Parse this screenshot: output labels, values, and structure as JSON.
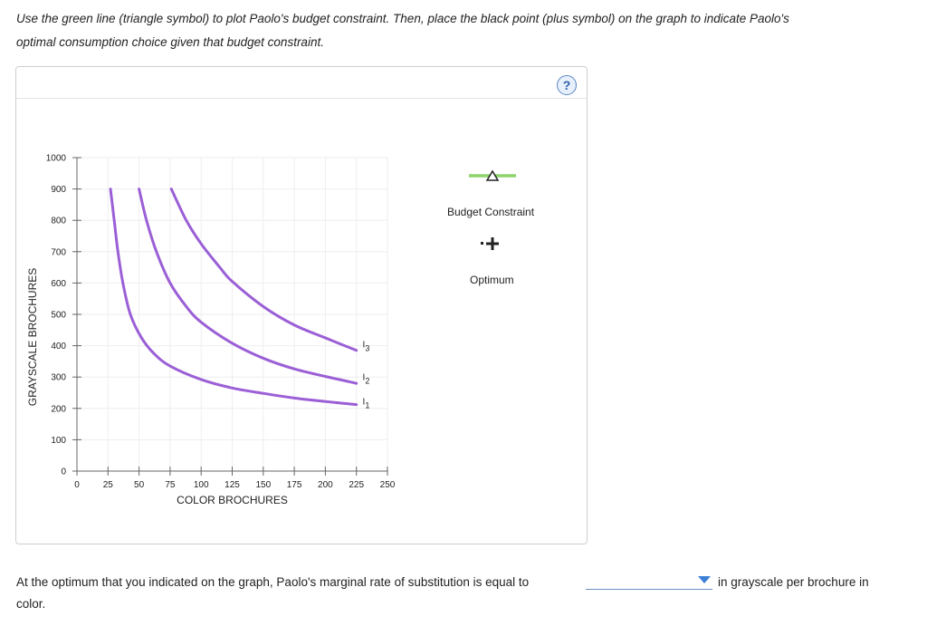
{
  "instructions": {
    "line1": "Use the green line (triangle symbol) to plot Paolo's budget constraint. Then, place the black point (plus symbol) on the graph to indicate Paolo's",
    "line2": "optimal consumption choice given that budget constraint."
  },
  "help_button": {
    "label": "?",
    "icon": "question-circle-icon",
    "color": "#5b86c5"
  },
  "chart_data": {
    "type": "line",
    "xlabel": "COLOR BROCHURES",
    "ylabel": "GRAYSCALE BROCHURES",
    "xlim": [
      0,
      250
    ],
    "ylim": [
      0,
      1000
    ],
    "x_ticks": [
      0,
      25,
      50,
      75,
      100,
      125,
      150,
      175,
      200,
      225,
      250
    ],
    "y_ticks": [
      0,
      100,
      200,
      300,
      400,
      500,
      600,
      700,
      800,
      900,
      1000
    ],
    "grid": true,
    "series": [
      {
        "name": "I1",
        "color": "#9b5fd6",
        "points": [
          [
            27,
            900
          ],
          [
            30,
            800
          ],
          [
            33,
            700
          ],
          [
            37,
            600
          ],
          [
            43,
            500
          ],
          [
            52,
            425
          ],
          [
            62,
            375
          ],
          [
            75,
            335
          ],
          [
            100,
            292
          ],
          [
            125,
            265
          ],
          [
            150,
            248
          ],
          [
            175,
            233
          ],
          [
            200,
            222
          ],
          [
            225,
            212
          ]
        ]
      },
      {
        "name": "I2",
        "color": "#9b5fd6",
        "points": [
          [
            50,
            900
          ],
          [
            56,
            800
          ],
          [
            64,
            700
          ],
          [
            75,
            600
          ],
          [
            88,
            525
          ],
          [
            100,
            475
          ],
          [
            125,
            408
          ],
          [
            150,
            360
          ],
          [
            175,
            326
          ],
          [
            200,
            302
          ],
          [
            225,
            280
          ]
        ]
      },
      {
        "name": "I3",
        "color": "#9b5fd6",
        "points": [
          [
            76,
            900
          ],
          [
            88,
            800
          ],
          [
            100,
            725
          ],
          [
            115,
            650
          ],
          [
            125,
            605
          ],
          [
            150,
            525
          ],
          [
            175,
            466
          ],
          [
            200,
            425
          ],
          [
            225,
            385
          ]
        ]
      }
    ],
    "curve_labels": [
      {
        "main": "I",
        "sub": "3",
        "x": 230,
        "y": 395
      },
      {
        "main": "I",
        "sub": "2",
        "x": 230,
        "y": 290
      },
      {
        "main": "I",
        "sub": "1",
        "x": 230,
        "y": 212
      }
    ]
  },
  "legend": {
    "budget": {
      "label": "Budget Constraint",
      "color": "#8fd46b",
      "icon": "triangle-icon"
    },
    "optimum": {
      "label": "Optimum",
      "color": "#222222",
      "icon": "plus-icon"
    }
  },
  "question": {
    "part1": "At the optimum that you indicated on the graph, Paolo's marginal rate of substitution is equal to",
    "part2": "in grayscale per brochure in",
    "part3": "color.",
    "select_value": "",
    "accent": "#3d7fd6"
  }
}
